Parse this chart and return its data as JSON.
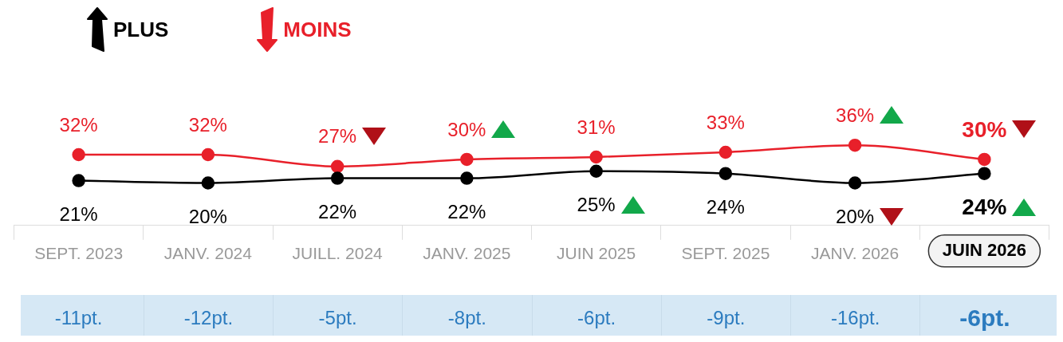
{
  "chart_data": {
    "type": "line",
    "categories": [
      "SEPT. 2023",
      "JANV. 2024",
      "JUILL. 2024",
      "JANV. 2025",
      "JUIN 2025",
      "SEPT. 2025",
      "JANV. 2026",
      "JUIN 2026"
    ],
    "series": [
      {
        "name": "PLUS",
        "color": "#000000",
        "values": [
          21,
          20,
          22,
          22,
          25,
          24,
          20,
          24
        ],
        "value_labels": [
          "21%",
          "20%",
          "22%",
          "22%",
          "25%",
          "24%",
          "20%",
          "24%"
        ]
      },
      {
        "name": "MOINS",
        "color": "#e8202a",
        "values": [
          32,
          32,
          27,
          30,
          31,
          33,
          36,
          30
        ],
        "value_labels": [
          "32%",
          "32%",
          "27%",
          "30%",
          "31%",
          "33%",
          "36%",
          "30%"
        ]
      }
    ],
    "marker": "circle",
    "legend": "top left",
    "grid": false,
    "annotations": [
      "-11pt.",
      "-12pt.",
      "-5pt.",
      "-8pt.",
      "-6pt.",
      "-9pt.",
      "-16pt.",
      "-6pt."
    ]
  }
}
